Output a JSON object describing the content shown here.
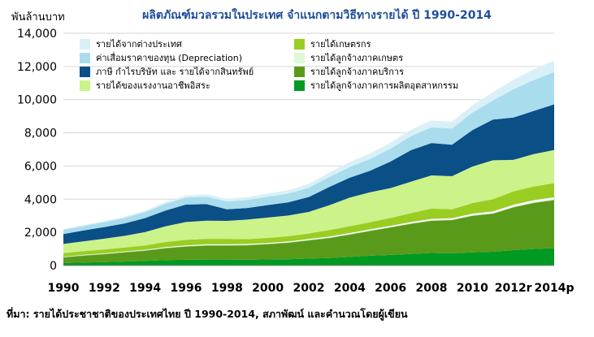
{
  "chart_data": {
    "type": "area",
    "stacked": true,
    "title": "ผลิตภัณฑ์มวลรวมในประเทศ จำแนกตามวิธีทางรายได้ ปี 1990-2014",
    "ylabel": "พันล้านบาท",
    "xlabel": "",
    "ylim": [
      0,
      14000
    ],
    "yticks": [
      "0",
      "2,000",
      "4,000",
      "6,000",
      "8,000",
      "10,000",
      "12,000",
      "14,000"
    ],
    "xticks": [
      "1990",
      "1992",
      "1994",
      "1996",
      "1998",
      "2000",
      "2002",
      "2004",
      "2006",
      "2008",
      "2010",
      "2012r",
      "2014p"
    ],
    "grid": true,
    "legend_position": "top",
    "x": [
      1990,
      1991,
      1992,
      1993,
      1994,
      1995,
      1996,
      1997,
      1998,
      1999,
      2000,
      2001,
      2002,
      2003,
      2004,
      2005,
      2006,
      2007,
      2008,
      2009,
      2010,
      2011,
      2012,
      2013,
      2014
    ],
    "series": [
      {
        "name": "รายได้ลูกจ้างภาคการผลิตอุตสาหกรรม",
        "color": "#009a23",
        "values": [
          150,
          180,
          210,
          240,
          280,
          330,
          350,
          360,
          360,
          350,
          370,
          380,
          420,
          450,
          520,
          590,
          640,
          700,
          760,
          740,
          800,
          830,
          930,
          1000,
          1050
        ]
      },
      {
        "name": "รายได้ลูกจ้างภาคบริการ",
        "color": "#5a9a1a",
        "values": [
          350,
          420,
          480,
          560,
          620,
          720,
          800,
          850,
          850,
          880,
          920,
          1000,
          1100,
          1210,
          1350,
          1500,
          1660,
          1820,
          1940,
          2000,
          2200,
          2300,
          2580,
          2780,
          2900
        ]
      },
      {
        "name": "รายได้ลูกจ้างภาคเกษตร",
        "color": "#ffffff",
        "values": [
          50,
          55,
          60,
          60,
          65,
          70,
          75,
          80,
          80,
          80,
          85,
          85,
          90,
          95,
          100,
          105,
          110,
          115,
          125,
          125,
          135,
          145,
          160,
          170,
          175
        ]
      },
      {
        "name": "รายได้เกษตรกร",
        "color": "#9acd22",
        "values": [
          200,
          210,
          220,
          230,
          250,
          300,
          320,
          320,
          320,
          280,
          290,
          300,
          320,
          380,
          400,
          420,
          460,
          520,
          610,
          520,
          630,
          720,
          800,
          820,
          840
        ]
      },
      {
        "name": "รายได้ของแรงงานอาชีพอิสระ",
        "color": "#ccf28a",
        "values": [
          550,
          600,
          650,
          700,
          800,
          950,
          1080,
          1090,
          1080,
          1180,
          1230,
          1250,
          1300,
          1500,
          1720,
          1800,
          1800,
          1900,
          2000,
          2000,
          2200,
          2350,
          1900,
          1950,
          2000
        ]
      },
      {
        "name": "ภาษี กำไรบริษัท และ รายได้จากสินทรัพย์",
        "color": "#0a4f86",
        "values": [
          600,
          650,
          700,
          750,
          850,
          950,
          1050,
          1000,
          700,
          700,
          750,
          800,
          900,
          1100,
          1200,
          1300,
          1600,
          1900,
          1950,
          1900,
          2200,
          2450,
          2550,
          2600,
          2750
        ]
      },
      {
        "name": "ค่าเสื่อมราคาของทุน (Depreciation)",
        "color": "#a9dcec",
        "values": [
          250,
          270,
          300,
          330,
          360,
          400,
          420,
          450,
          470,
          480,
          500,
          520,
          560,
          600,
          650,
          710,
          780,
          850,
          940,
          980,
          1050,
          1150,
          1700,
          1850,
          1950
        ]
      },
      {
        "name": "รายได้จากต่างประเทศ",
        "color": "#d9f0f7",
        "values": [
          40,
          50,
          60,
          70,
          90,
          110,
          130,
          150,
          160,
          170,
          190,
          210,
          240,
          270,
          300,
          330,
          360,
          390,
          420,
          400,
          450,
          500,
          580,
          650,
          700
        ]
      }
    ]
  },
  "legend_columns": [
    [
      "รายได้จากต่างประเทศ",
      "ค่าเสื่อมราคาของทุน (Depreciation)",
      "ภาษี กำไรบริษัท และ รายได้จากสินทรัพย์",
      "รายได้ของแรงงานอาชีพอิสระ"
    ],
    [
      "รายได้เกษตรกร",
      "รายได้ลูกจ้างภาคเกษตร",
      "รายได้ลูกจ้างภาคบริการ",
      "รายได้ลูกจ้างภาคการผลิตอุตสาหกรรม"
    ]
  ],
  "source_text": "ที่มา: รายได้ประชาชาติของประเทศไทย ปี 1990-2014, สภาพัฒน์ และคำนวณโดยผู้เขียน"
}
